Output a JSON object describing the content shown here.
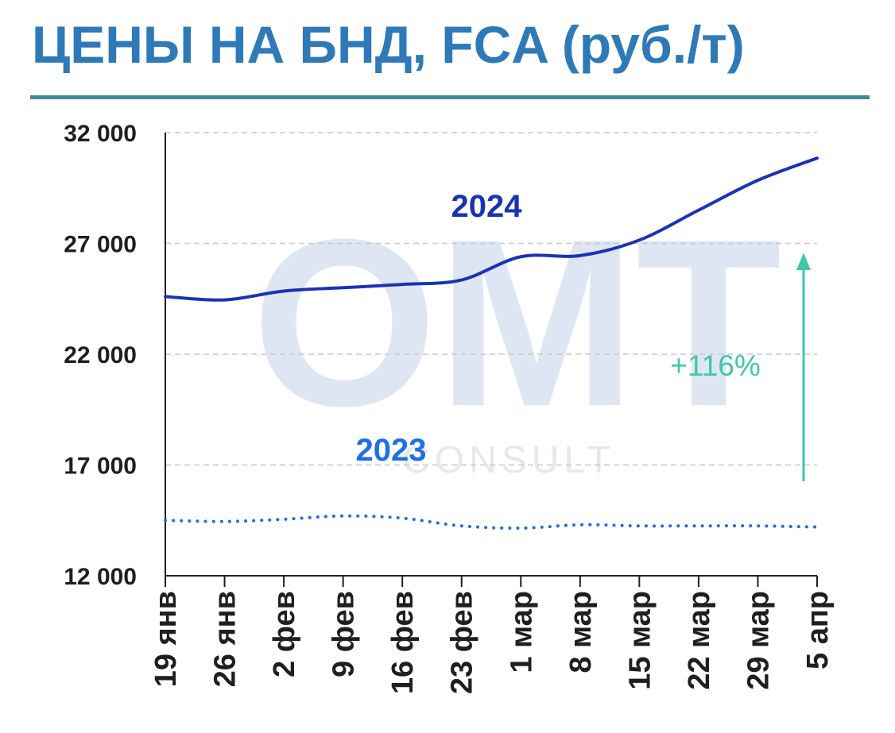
{
  "colors": {
    "title": "#2e7ab8",
    "rule": "#3b8f96",
    "series_2024": "#1a33b5",
    "series_2023": "#1f6fe6",
    "arrow": "#3fc7a9",
    "grid": "#c8c8c8",
    "axis": "#1f1f1f"
  },
  "watermark": {
    "main": "OMT",
    "sub": "CONSULT"
  },
  "chart_data": {
    "type": "line",
    "title": "ЦЕНЫ НА БНД, FCA (руб./т)",
    "xlabel": "",
    "ylabel": "",
    "categories": [
      "19 янв",
      "26 янв",
      "2 фев",
      "9 фев",
      "16 фев",
      "23 фев",
      "1 мар",
      "8 мар",
      "15 мар",
      "22 мар",
      "29 мар",
      "5 апр"
    ],
    "ylim": [
      12000,
      32000
    ],
    "yticks": [
      12000,
      17000,
      22000,
      27000,
      32000
    ],
    "ytick_labels": [
      "12 000",
      "17 000",
      "22 000",
      "27 000",
      "32 000"
    ],
    "grid": true,
    "series": [
      {
        "name": "2024",
        "style": "solid",
        "values": [
          24600,
          24450,
          24850,
          25000,
          25150,
          25350,
          26400,
          26450,
          27150,
          28500,
          29850,
          30850
        ]
      },
      {
        "name": "2023",
        "style": "dotted",
        "values": [
          14500,
          14450,
          14550,
          14700,
          14600,
          14250,
          14150,
          14300,
          14250,
          14250,
          14250,
          14200
        ]
      }
    ],
    "annotations": [
      {
        "text": "+116%",
        "type": "arrow-up"
      }
    ]
  }
}
